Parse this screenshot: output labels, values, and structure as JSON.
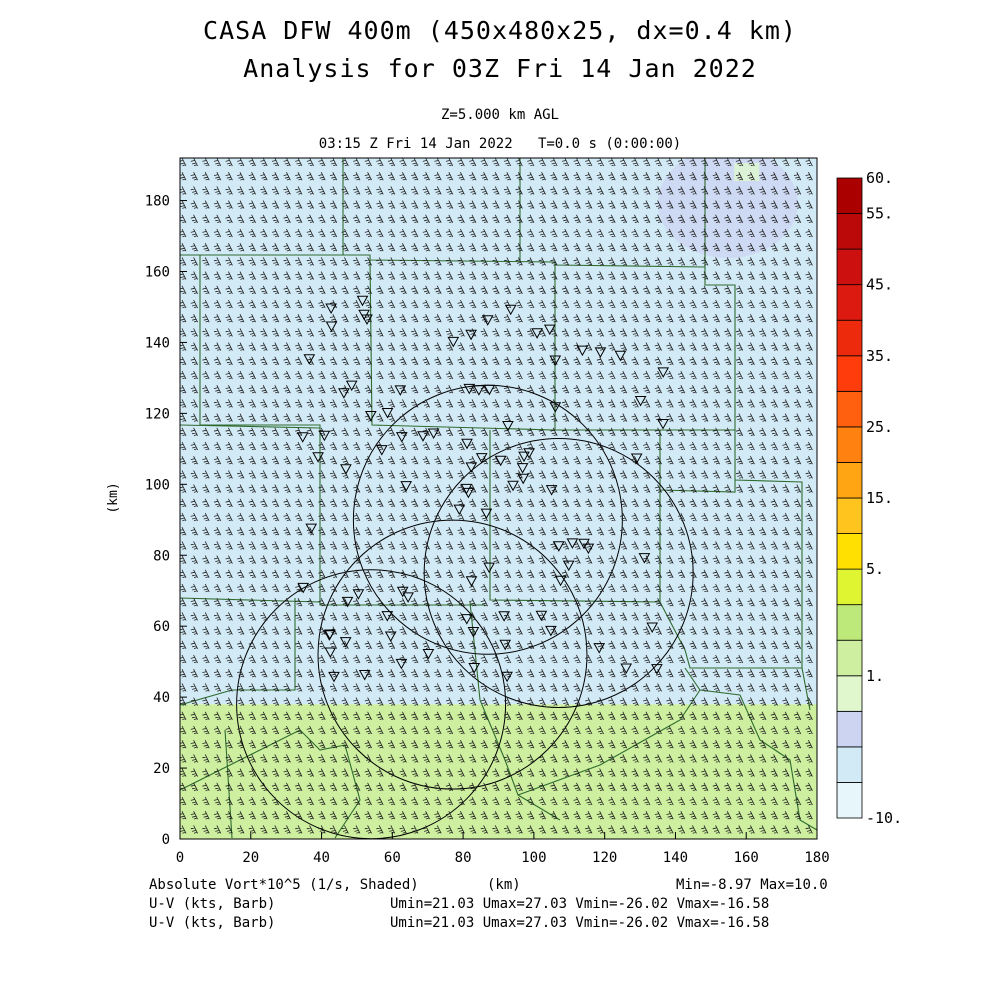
{
  "title": "CASA DFW 400m (450x480x25, dx=0.4 km)",
  "subtitle": "Analysis for 03Z Fri 14 Jan 2022",
  "level": "Z=5.000 km AGL",
  "valid_time": "03:15 Z Fri 14 Jan 2022",
  "forecast_time": "T=0.0 s (0:00:00)",
  "axis_unit": "(km)",
  "x_axis": {
    "unit": "(km)",
    "min": 0,
    "max": 180,
    "ticks": [
      "0",
      "20",
      "40",
      "60",
      "80",
      "100",
      "120",
      "140",
      "160",
      "180"
    ]
  },
  "y_axis": {
    "unit": "(km)",
    "min": 0,
    "max": 192,
    "ticks": [
      "0",
      "20",
      "40",
      "60",
      "80",
      "100",
      "120",
      "140",
      "160",
      "180"
    ]
  },
  "field": {
    "name": "Absolute Vort*10^5 (1/s, Shaded)",
    "min_label": "Min=-8.97",
    "max_label": "Max=10.0",
    "regions": [
      {
        "ymin": 0,
        "ymax": 38,
        "level": "5."
      },
      {
        "ymin": 38,
        "ymax": 192,
        "level": "1."
      }
    ]
  },
  "vectors": [
    {
      "label": "U-V (kts, Barb)",
      "stats": "Umin=21.03 Umax=27.03 Vmin=-26.02 Vmax=-16.58"
    },
    {
      "label": "U-V (kts, Barb)",
      "stats": "Umin=21.03 Umax=27.03 Vmin=-26.02 Vmax=-16.58"
    }
  ],
  "colorbar": {
    "labels": [
      "60.",
      "55.",
      "45.",
      "35.",
      "25.",
      "15.",
      "5.",
      "1.",
      "-10."
    ],
    "colors": [
      "#e6f6fb",
      "#d2eaf6",
      "#ccd4f2",
      "#e0f7ce",
      "#cdef9f",
      "#bde87a",
      "#dff532",
      "#ffe000",
      "#ffc41e",
      "#ffa514",
      "#ff8210",
      "#ff6010",
      "#ff3c0c",
      "#ee2a0c",
      "#dd1a10",
      "#cc1010",
      "#bb0808",
      "#aa0000"
    ]
  },
  "colors": {
    "border": "#2e6b2e",
    "barb": "#202020",
    "range_ring": "#000000"
  },
  "radar_rings_km": [
    {
      "x": 107,
      "y": 75,
      "r": 38
    },
    {
      "x": 87,
      "y": 90,
      "r": 38
    },
    {
      "x": 54,
      "y": 38,
      "r": 38
    },
    {
      "x": 77,
      "y": 52,
      "r": 38
    }
  ]
}
